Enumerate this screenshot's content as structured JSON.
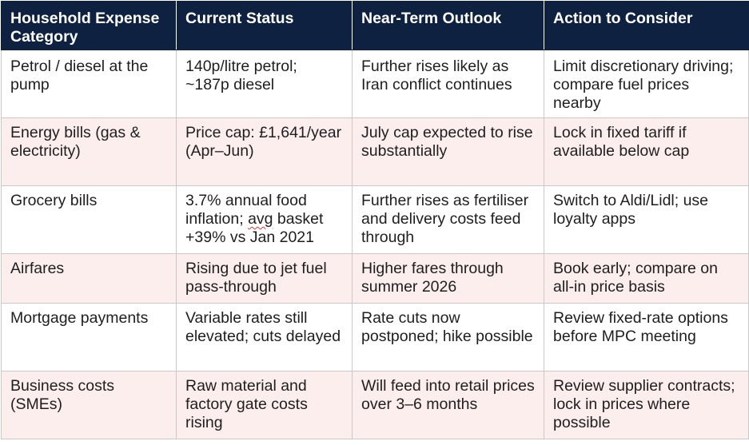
{
  "table": {
    "headers": [
      "Household Expense Category",
      "Current Status",
      "Near-Term Outlook",
      "Action to Consider"
    ],
    "rows": [
      {
        "category": "Petrol / diesel at the pump",
        "status": "140p/litre petrol; ~187p diesel",
        "outlook": "Further rises likely as Iran conflict continues",
        "action": "Limit discretionary driving; compare fuel prices nearby"
      },
      {
        "category": "Energy bills (gas & electricity)",
        "status": "Price cap: £1,641/year (Apr–Jun)",
        "outlook": "July cap expected to rise substantially",
        "action": "Lock in fixed tariff if available below cap"
      },
      {
        "category": "Grocery bills",
        "status_pre": "3.7% annual food inflation; ",
        "status_flagged": "avg",
        "status_post": " basket +39% vs Jan 2021",
        "outlook": "Further rises as fertiliser and delivery costs feed through",
        "action": "Switch to Aldi/Lidl; use loyalty apps"
      },
      {
        "category": "Airfares",
        "status": "Rising due to jet fuel pass-through",
        "outlook": "Higher fares through summer 2026",
        "action": "Book early; compare on all-in price basis"
      },
      {
        "category": "Mortgage payments",
        "status": "Variable rates still elevated; cuts delayed",
        "outlook": "Rate cuts now postponed; hike possible",
        "action": "Review fixed-rate options before MPC meeting"
      },
      {
        "category": "Business costs (SMEs)",
        "status": "Raw material and factory gate costs rising",
        "outlook": "Will feed into retail prices over 3–6 months",
        "action": "Review supplier contracts; lock in prices where possible"
      }
    ]
  },
  "colors": {
    "header_background": "#0e2141",
    "header_text": "#ffffff",
    "stripe_row": "#fdeeee",
    "spellcheck_underline": "#d23a3a"
  }
}
